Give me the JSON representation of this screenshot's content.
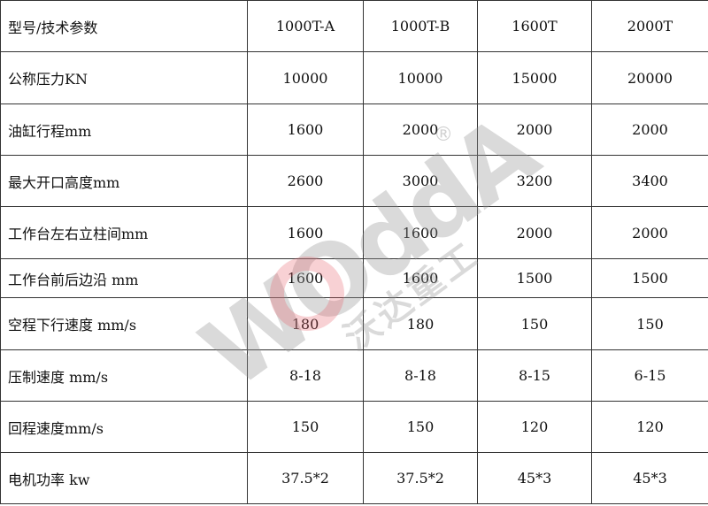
{
  "header": [
    "型号/技术参数",
    "1000T-A",
    "1000T-B",
    "1600T",
    "2000T"
  ],
  "rows": [
    {
      "label": "公称压力KN",
      "values": [
        "10000",
        "10000",
        "15000",
        "20000"
      ]
    },
    {
      "label": "油缸行程mm",
      "values": [
        "1600",
        "2000",
        "2000",
        "2000"
      ]
    },
    {
      "label": "最大开口高度mm",
      "values": [
        "2600",
        "3000",
        "3200",
        "3400"
      ]
    },
    {
      "label": "工作台左右立柱间mm",
      "values": [
        "1600",
        "1600",
        "2000",
        "2000"
      ]
    },
    {
      "label": "工作台前后边沿 mm",
      "values": [
        "1600",
        "1600",
        "1500",
        "1500"
      ]
    },
    {
      "label": "空程下行速度 mm/s",
      "values": [
        "180",
        "180",
        "150",
        "150"
      ]
    },
    {
      "label": "压制速度 mm/s",
      "values": [
        "8-18",
        "8-18",
        "8-15",
        "6-15"
      ]
    },
    {
      "label": "回程速度mm/s",
      "values": [
        "150",
        "150",
        "120",
        "120"
      ]
    },
    {
      "label": "电机功率 kw",
      "values": [
        "37.5*2",
        "37.5*2",
        "45*3",
        "45*3"
      ]
    }
  ],
  "watermark": {
    "latin": "WOddA",
    "chinese": "沃达重工",
    "mark": "®"
  }
}
